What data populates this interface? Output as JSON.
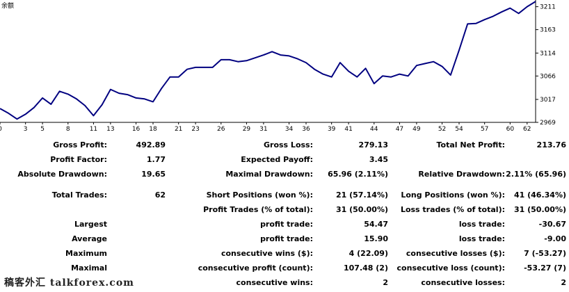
{
  "chart_data": {
    "type": "line",
    "ylabel": "余额",
    "xlim": [
      0,
      63
    ],
    "ylim": [
      2969,
      3225
    ],
    "xticks": [
      0,
      3,
      5,
      8,
      11,
      13,
      16,
      18,
      21,
      23,
      26,
      29,
      31,
      34,
      36,
      39,
      41,
      44,
      47,
      49,
      52,
      54,
      57,
      60,
      62
    ],
    "yticks": [
      2969,
      3017,
      3066,
      3114,
      3163,
      3211
    ],
    "grid": false,
    "color": "#000080",
    "series": [
      {
        "x": [
          0,
          1,
          2,
          3,
          4,
          5,
          6,
          7,
          8,
          9,
          10,
          11,
          12,
          13,
          14,
          15,
          16,
          17,
          18,
          19,
          20,
          21,
          22,
          23,
          24,
          25,
          26,
          27,
          28,
          29,
          30,
          31,
          32,
          33,
          34,
          35,
          36,
          37,
          38,
          39,
          40,
          41,
          42,
          43,
          44,
          45,
          46,
          47,
          48,
          49,
          50,
          51,
          52,
          53,
          54,
          55,
          56,
          57,
          58,
          59,
          60,
          61,
          62,
          63
        ],
        "y": [
          2998,
          2988,
          2976,
          2986,
          3000,
          3020,
          3007,
          3034,
          3028,
          3018,
          3004,
          2983,
          3006,
          3038,
          3030,
          3027,
          3020,
          3018,
          3012,
          3040,
          3064,
          3064,
          3080,
          3084,
          3084,
          3084,
          3100,
          3100,
          3096,
          3098,
          3104,
          3110,
          3117,
          3110,
          3108,
          3102,
          3094,
          3080,
          3070,
          3064,
          3094,
          3076,
          3064,
          3082,
          3050,
          3066,
          3064,
          3070,
          3066,
          3088,
          3092,
          3096,
          3086,
          3068,
          3120,
          3175,
          3176,
          3184,
          3191,
          3200,
          3208,
          3197,
          3211,
          3222
        ]
      }
    ]
  },
  "stats": {
    "gross_profit": {
      "label": "Gross Profit:",
      "value": "492.89"
    },
    "gross_loss": {
      "label": "Gross Loss:",
      "value": "279.13"
    },
    "total_net_profit": {
      "label": "Total Net Profit:",
      "value": "213.76"
    },
    "profit_factor": {
      "label": "Profit Factor:",
      "value": "1.77"
    },
    "expected_payoff": {
      "label": "Expected Payoff:",
      "value": "3.45"
    },
    "absolute_drawdown": {
      "label": "Absolute Drawdown:",
      "value": "19.65"
    },
    "maximal_drawdown": {
      "label": "Maximal Drawdown:",
      "value": "65.96 (2.11%)"
    },
    "relative_drawdown": {
      "label": "Relative Drawdown:",
      "value": "2.11% (65.96)"
    },
    "total_trades": {
      "label": "Total Trades:",
      "value": "62"
    },
    "short_positions": {
      "label": "Short Positions (won %):",
      "value": "21 (57.14%)"
    },
    "long_positions": {
      "label": "Long Positions (won %):",
      "value": "41 (46.34%)"
    },
    "profit_trades": {
      "label": "Profit Trades (% of total):",
      "value": "31 (50.00%)"
    },
    "loss_trades": {
      "label": "Loss trades (% of total):",
      "value": "31 (50.00%)"
    },
    "largest_label": "Largest",
    "largest_profit": {
      "label": "profit trade:",
      "value": "54.47"
    },
    "largest_loss": {
      "label": "loss trade:",
      "value": "-30.67"
    },
    "average_label": "Average",
    "average_profit": {
      "label": "profit trade:",
      "value": "15.90"
    },
    "average_loss": {
      "label": "loss trade:",
      "value": "-9.00"
    },
    "maximum_label": "Maximum",
    "max_consec_wins": {
      "label": "consecutive wins ($):",
      "value": "4 (22.09)"
    },
    "max_consec_losses": {
      "label": "consecutive losses ($):",
      "value": "7 (-53.27)"
    },
    "maximal_label": "Maximal",
    "maximal_consec_profit": {
      "label": "consecutive profit (count):",
      "value": "107.48 (2)"
    },
    "maximal_consec_loss": {
      "label": "consecutive loss (count):",
      "value": "-53.27 (7)"
    },
    "avg_consec_wins": {
      "label": "consecutive wins:",
      "value": "2"
    },
    "avg_consec_losses": {
      "label": "consecutive losses:",
      "value": "2"
    }
  },
  "watermark": "稿客外汇 talkforex.com"
}
